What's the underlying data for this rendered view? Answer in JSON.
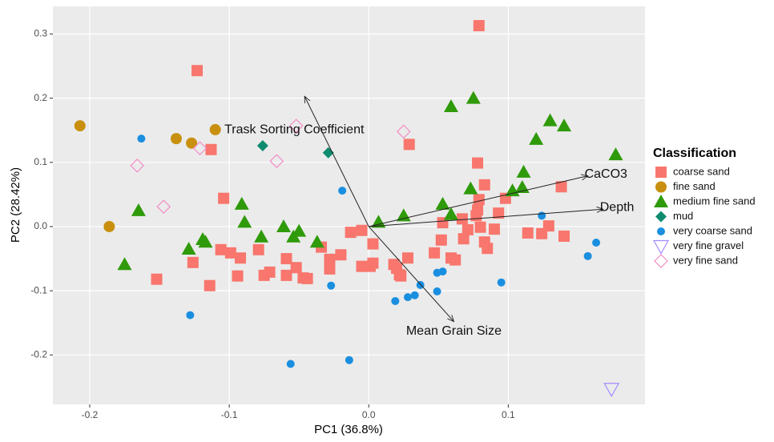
{
  "chart_data": {
    "type": "scatter",
    "xlabel": "PC1 (36.8%)",
    "ylabel": "PC2 (28.42%)",
    "xlim": [
      -0.2264,
      0.198
    ],
    "ylim": [
      -0.277,
      0.343
    ],
    "xticks": [
      -0.2,
      -0.1,
      {
        "value": 0,
        "label": "0.0"
      },
      0.1
    ],
    "yticks": [
      -0.2,
      -0.1,
      {
        "value": 0,
        "label": "0.0"
      },
      0.1,
      0.2,
      0.3
    ],
    "grid": true,
    "legend_title": "Classification",
    "series": [
      {
        "name": "coarse sand",
        "color": "#f8766d",
        "shape": "square",
        "x": [
          -0.123,
          0.079,
          -0.113,
          -0.104,
          -0.152,
          -0.126,
          -0.114,
          -0.106,
          -0.099,
          -0.092,
          -0.094,
          -0.079,
          -0.075,
          -0.071,
          -0.059,
          -0.059,
          -0.052,
          -0.047,
          -0.044,
          -0.034,
          -0.028,
          -0.028,
          -0.02,
          -0.013,
          -0.005,
          -0.005,
          0.001,
          0.003,
          0.003,
          0.018,
          0.02,
          0.022,
          0.023,
          0.028,
          0.029,
          0.047,
          0.052,
          0.053,
          0.059,
          0.062,
          0.067,
          0.068,
          0.071,
          0.078,
          0.079,
          0.078,
          0.08,
          0.083,
          0.083,
          0.085,
          0.09,
          0.093,
          0.098,
          0.114,
          0.124,
          0.129,
          0.138,
          0.14,
          0.077
        ],
        "values": [
          0.243,
          0.313,
          0.12,
          0.044,
          -0.082,
          -0.056,
          -0.092,
          -0.036,
          -0.041,
          -0.049,
          -0.077,
          -0.036,
          -0.076,
          -0.071,
          -0.05,
          -0.076,
          -0.064,
          -0.08,
          -0.081,
          -0.032,
          -0.066,
          -0.051,
          -0.044,
          -0.009,
          -0.006,
          -0.062,
          -0.062,
          -0.027,
          -0.057,
          -0.059,
          -0.065,
          -0.075,
          -0.077,
          -0.049,
          0.128,
          -0.041,
          -0.021,
          0.006,
          -0.049,
          -0.052,
          0.012,
          -0.019,
          -0.005,
          0.099,
          0.042,
          0.026,
          -0.001,
          0.065,
          -0.024,
          -0.034,
          -0.004,
          0.021,
          0.044,
          -0.01,
          -0.011,
          0.001,
          0.062,
          -0.015,
          0.017
        ]
      },
      {
        "name": "fine sand",
        "color": "#c8900e",
        "shape": "circle",
        "x": [
          -0.207,
          -0.186,
          -0.138,
          -0.127,
          -0.11
        ],
        "values": [
          0.157,
          0.0,
          0.137,
          0.13,
          0.151
        ]
      },
      {
        "name": "medium fine sand",
        "color": "#2f9a0a",
        "shape": "triangle",
        "x": [
          -0.175,
          -0.165,
          -0.129,
          -0.119,
          -0.117,
          -0.091,
          -0.089,
          -0.077,
          -0.061,
          -0.054,
          -0.05,
          -0.037,
          0.007,
          0.025,
          0.053,
          0.059,
          0.059,
          0.075,
          0.073,
          0.103,
          0.11,
          0.111,
          0.12,
          0.13,
          0.14,
          0.177
        ],
        "values": [
          -0.059,
          0.025,
          -0.035,
          -0.02,
          -0.024,
          0.035,
          0.007,
          -0.016,
          0.0,
          -0.016,
          -0.007,
          -0.024,
          0.007,
          0.017,
          0.035,
          0.019,
          0.187,
          0.2,
          0.059,
          0.056,
          0.061,
          0.085,
          0.136,
          0.165,
          0.157,
          0.112
        ]
      },
      {
        "name": "mud",
        "color": "#0f8b6f",
        "shape": "diamond",
        "x": [
          -0.076,
          -0.029
        ],
        "values": [
          0.126,
          0.115
        ]
      },
      {
        "name": "very coarse sand",
        "color": "#1a8fe0",
        "shape": "dot",
        "x": [
          -0.163,
          -0.128,
          -0.019,
          -0.027,
          -0.056,
          -0.014,
          0.019,
          0.028,
          0.033,
          0.037,
          0.049,
          0.053,
          0.049,
          0.095,
          0.124,
          0.157,
          0.163
        ],
        "values": [
          0.137,
          -0.138,
          0.056,
          -0.092,
          -0.214,
          -0.208,
          -0.116,
          -0.11,
          -0.107,
          -0.091,
          -0.072,
          -0.07,
          -0.101,
          -0.087,
          0.017,
          -0.046,
          -0.025
        ]
      },
      {
        "name": "very fine gravel",
        "color": "#a58aff",
        "shape": "triangle-down-open",
        "x": [
          0.174
        ],
        "values": [
          -0.253
        ]
      },
      {
        "name": "very fine sand",
        "color": "#f28dc4",
        "shape": "diamond-open",
        "x": [
          -0.166,
          -0.147,
          -0.121,
          -0.066,
          -0.052,
          0.025
        ],
        "values": [
          0.095,
          0.031,
          0.122,
          0.102,
          0.157,
          0.148
        ]
      }
    ],
    "loadings": [
      {
        "name": "Trask Sorting Coefficient",
        "x": -0.046,
        "y": 0.203
      },
      {
        "name": "Mean Grain Size",
        "x": 0.061,
        "y": -0.148
      },
      {
        "name": "CaCO3",
        "x": 0.157,
        "y": 0.079
      },
      {
        "name": "Depth",
        "x": 0.168,
        "y": 0.027
      }
    ]
  }
}
